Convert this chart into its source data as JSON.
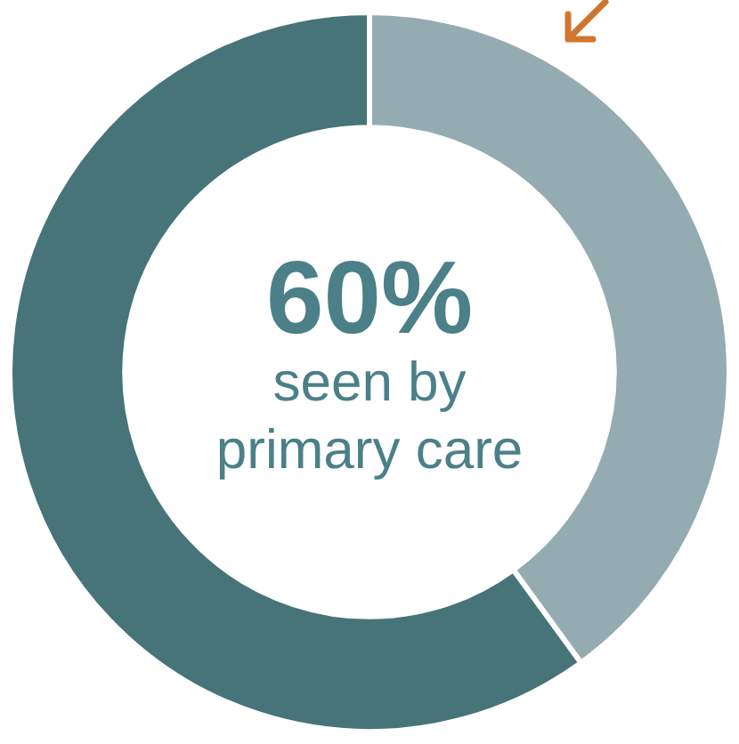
{
  "chart_data": {
    "type": "donut",
    "categories": [
      null,
      null
    ],
    "values": [
      40,
      60
    ],
    "colors": [
      "#94abb1",
      "#467479"
    ],
    "value_labels": [
      null,
      "60%"
    ],
    "annotations": [
      "seen by primary care"
    ]
  }
}
